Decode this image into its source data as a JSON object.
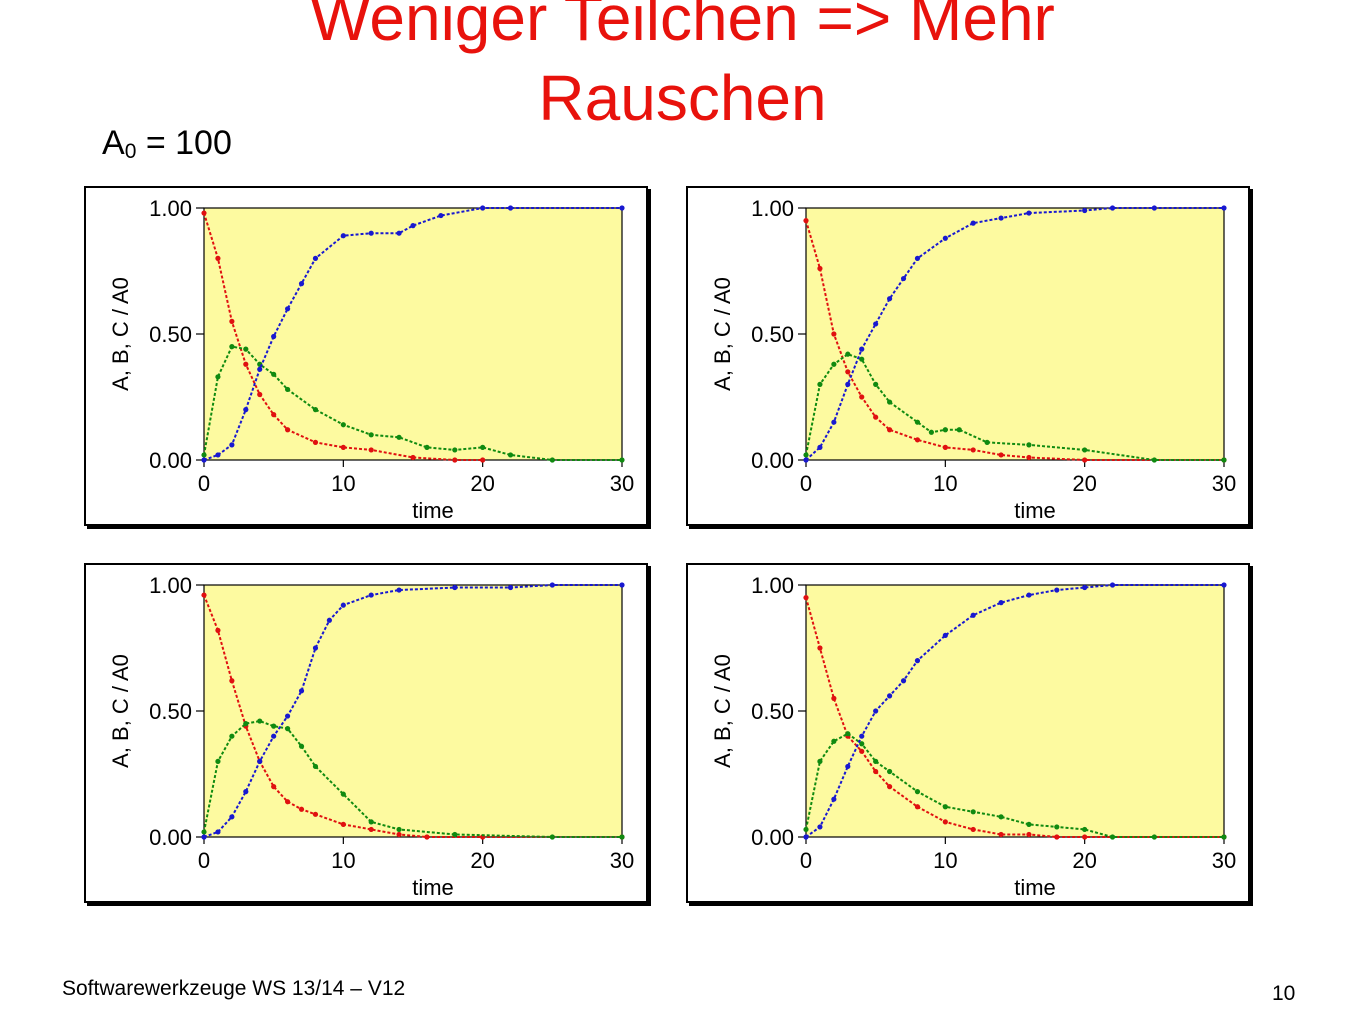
{
  "slide": {
    "title_line1": "Weniger Teilchen => Mehr",
    "title_line2": "Rauschen",
    "subtitle_prefix": "A",
    "subtitle_sub": "0",
    "subtitle_rest": " = 100",
    "footer": "Softwarewerkzeuge WS 13/14 –  V12",
    "page_number": "10"
  },
  "colors": {
    "title": "#e8120c",
    "plot_background": "#fdfaa0",
    "A": "#e01010",
    "B": "#108a10",
    "C": "#1818d0"
  },
  "chart_data": [
    {
      "type": "scatter",
      "xlabel": "time",
      "ylabel": "A, B, C / A0",
      "xlim": [
        0,
        30
      ],
      "ylim": [
        0,
        1
      ],
      "xticks": [
        "0",
        "10",
        "20",
        "30"
      ],
      "yticks": [
        "0.00",
        "0.50",
        "1.00"
      ],
      "grid": false,
      "legend": "none",
      "series": [
        {
          "color": "#e01010",
          "x": [
            0,
            1,
            2,
            3,
            4,
            5,
            6,
            8,
            10,
            12,
            15,
            18,
            20
          ],
          "y": [
            0.98,
            0.8,
            0.55,
            0.38,
            0.26,
            0.18,
            0.12,
            0.07,
            0.05,
            0.04,
            0.01,
            0.0,
            0.0
          ]
        },
        {
          "color": "#108a10",
          "x": [
            0,
            1,
            2,
            3,
            4,
            5,
            6,
            8,
            10,
            12,
            14,
            16,
            18,
            20,
            22,
            25,
            30
          ],
          "y": [
            0.02,
            0.33,
            0.45,
            0.44,
            0.38,
            0.34,
            0.28,
            0.2,
            0.14,
            0.1,
            0.09,
            0.05,
            0.04,
            0.05,
            0.02,
            0.0,
            0.0
          ]
        },
        {
          "color": "#1818d0",
          "x": [
            0,
            1,
            2,
            3,
            4,
            5,
            6,
            7,
            8,
            10,
            12,
            14,
            15,
            17,
            20,
            22,
            30
          ],
          "y": [
            0.0,
            0.02,
            0.06,
            0.2,
            0.36,
            0.49,
            0.6,
            0.7,
            0.8,
            0.89,
            0.9,
            0.9,
            0.93,
            0.97,
            1.0,
            1.0,
            1.0
          ]
        }
      ]
    },
    {
      "type": "scatter",
      "xlabel": "time",
      "ylabel": "A, B, C / A0",
      "xlim": [
        0,
        30
      ],
      "ylim": [
        0,
        1
      ],
      "xticks": [
        "0",
        "10",
        "20",
        "30"
      ],
      "yticks": [
        "0.00",
        "0.50",
        "1.00"
      ],
      "grid": false,
      "legend": "none",
      "series": [
        {
          "color": "#e01010",
          "x": [
            0,
            1,
            2,
            3,
            4,
            5,
            6,
            8,
            10,
            12,
            14,
            16,
            20,
            30
          ],
          "y": [
            0.95,
            0.76,
            0.5,
            0.35,
            0.25,
            0.17,
            0.12,
            0.08,
            0.05,
            0.04,
            0.02,
            0.01,
            0.0,
            0.0
          ]
        },
        {
          "color": "#108a10",
          "x": [
            0,
            1,
            2,
            3,
            4,
            5,
            6,
            8,
            9,
            10,
            11,
            13,
            16,
            20,
            25,
            30
          ],
          "y": [
            0.02,
            0.3,
            0.38,
            0.42,
            0.4,
            0.3,
            0.23,
            0.15,
            0.11,
            0.12,
            0.12,
            0.07,
            0.06,
            0.04,
            0.0,
            0.0
          ]
        },
        {
          "color": "#1818d0",
          "x": [
            0,
            1,
            2,
            3,
            4,
            5,
            6,
            7,
            8,
            10,
            12,
            14,
            16,
            20,
            22,
            25,
            30
          ],
          "y": [
            0.0,
            0.05,
            0.15,
            0.3,
            0.44,
            0.54,
            0.64,
            0.72,
            0.8,
            0.88,
            0.94,
            0.96,
            0.98,
            0.99,
            1.0,
            1.0,
            1.0
          ]
        }
      ]
    },
    {
      "type": "scatter",
      "xlabel": "time",
      "ylabel": "A, B, C / A0",
      "xlim": [
        0,
        30
      ],
      "ylim": [
        0,
        1
      ],
      "xticks": [
        "0",
        "10",
        "20",
        "30"
      ],
      "yticks": [
        "0.00",
        "0.50",
        "1.00"
      ],
      "grid": false,
      "legend": "none",
      "series": [
        {
          "color": "#e01010",
          "x": [
            0,
            1,
            2,
            3,
            4,
            5,
            6,
            7,
            8,
            10,
            12,
            14,
            16,
            20,
            30
          ],
          "y": [
            0.96,
            0.82,
            0.62,
            0.44,
            0.3,
            0.2,
            0.14,
            0.11,
            0.09,
            0.05,
            0.03,
            0.01,
            0.0,
            0.0,
            0.0
          ]
        },
        {
          "color": "#108a10",
          "x": [
            0,
            1,
            2,
            3,
            4,
            5,
            6,
            7,
            8,
            10,
            12,
            14,
            18,
            25,
            30
          ],
          "y": [
            0.02,
            0.3,
            0.4,
            0.45,
            0.46,
            0.44,
            0.43,
            0.36,
            0.28,
            0.17,
            0.06,
            0.03,
            0.01,
            0.0,
            0.0
          ]
        },
        {
          "color": "#1818d0",
          "x": [
            0,
            1,
            2,
            3,
            4,
            5,
            6,
            7,
            8,
            9,
            10,
            12,
            14,
            18,
            22,
            25,
            30
          ],
          "y": [
            0.0,
            0.02,
            0.08,
            0.18,
            0.3,
            0.4,
            0.48,
            0.58,
            0.75,
            0.86,
            0.92,
            0.96,
            0.98,
            0.99,
            0.99,
            1.0,
            1.0
          ]
        }
      ]
    },
    {
      "type": "scatter",
      "xlabel": "time",
      "ylabel": "A, B, C / A0",
      "xlim": [
        0,
        30
      ],
      "ylim": [
        0,
        1
      ],
      "xticks": [
        "0",
        "10",
        "20",
        "30"
      ],
      "yticks": [
        "0.00",
        "0.50",
        "1.00"
      ],
      "grid": false,
      "legend": "none",
      "series": [
        {
          "color": "#e01010",
          "x": [
            0,
            1,
            2,
            3,
            4,
            5,
            6,
            8,
            10,
            12,
            14,
            16,
            18,
            20,
            30
          ],
          "y": [
            0.95,
            0.75,
            0.55,
            0.4,
            0.34,
            0.26,
            0.2,
            0.12,
            0.06,
            0.03,
            0.01,
            0.01,
            0.0,
            0.0,
            0.0
          ]
        },
        {
          "color": "#108a10",
          "x": [
            0,
            1,
            2,
            3,
            4,
            5,
            6,
            8,
            10,
            12,
            14,
            16,
            18,
            20,
            22,
            25,
            30
          ],
          "y": [
            0.03,
            0.3,
            0.38,
            0.41,
            0.37,
            0.3,
            0.26,
            0.18,
            0.12,
            0.1,
            0.08,
            0.05,
            0.04,
            0.03,
            0.0,
            0.0,
            0.0
          ]
        },
        {
          "color": "#1818d0",
          "x": [
            0,
            1,
            2,
            3,
            4,
            5,
            6,
            7,
            8,
            10,
            12,
            14,
            16,
            18,
            20,
            22,
            30
          ],
          "y": [
            0.0,
            0.04,
            0.15,
            0.28,
            0.4,
            0.5,
            0.56,
            0.62,
            0.7,
            0.8,
            0.88,
            0.93,
            0.96,
            0.98,
            0.99,
            1.0,
            1.0
          ]
        }
      ]
    }
  ]
}
